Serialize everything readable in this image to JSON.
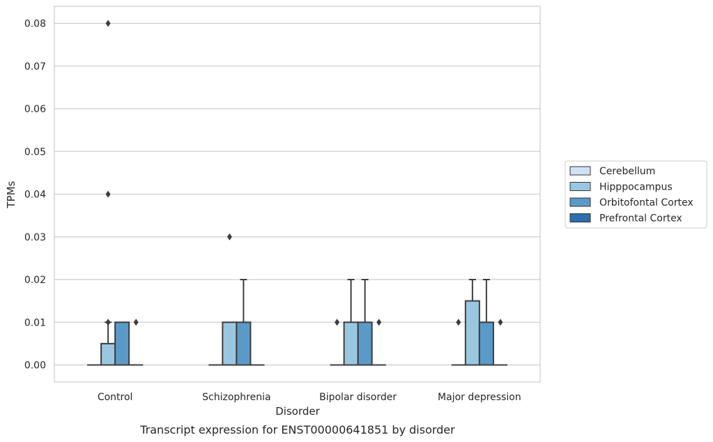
{
  "chart_data": {
    "type": "box",
    "title": "",
    "caption": "Transcript expression for ENST00000641851 by disorder",
    "xlabel": "Disorder",
    "ylabel": "TPMs",
    "ylim": [
      -0.004,
      0.084
    ],
    "yticks": [
      0.0,
      0.01,
      0.02,
      0.03,
      0.04,
      0.05,
      0.06,
      0.07,
      0.08
    ],
    "ytick_labels": [
      "0.00",
      "0.01",
      "0.02",
      "0.03",
      "0.04",
      "0.05",
      "0.06",
      "0.07",
      "0.08"
    ],
    "grid": "horizontal",
    "legend_placement": "outside right",
    "categories": [
      "Control",
      "Schizophrenia",
      "Bipolar disorder",
      "Major depression"
    ],
    "series": [
      {
        "name": "Cerebellum",
        "color": "#d0e1f2",
        "boxes": [
          {
            "min": 0,
            "q1": 0,
            "median": 0,
            "q3": 0,
            "max": 0,
            "outliers": []
          },
          {
            "min": 0,
            "q1": 0,
            "median": 0,
            "q3": 0,
            "max": 0,
            "outliers": []
          },
          {
            "min": 0,
            "q1": 0,
            "median": 0,
            "q3": 0,
            "max": 0,
            "outliers": [
              0.01
            ]
          },
          {
            "min": 0,
            "q1": 0,
            "median": 0,
            "q3": 0,
            "max": 0,
            "outliers": [
              0.01
            ]
          }
        ]
      },
      {
        "name": "Hipppocampus",
        "color": "#9ac7e0",
        "boxes": [
          {
            "min": 0,
            "q1": 0,
            "median": 0,
            "q3": 0.005,
            "max": 0.01,
            "outliers": [
              0.01,
              0.04,
              0.08
            ]
          },
          {
            "min": 0,
            "q1": 0,
            "median": 0,
            "q3": 0.01,
            "max": 0.01,
            "outliers": [
              0.03
            ]
          },
          {
            "min": 0,
            "q1": 0,
            "median": 0,
            "q3": 0.01,
            "max": 0.02,
            "outliers": []
          },
          {
            "min": 0,
            "q1": 0,
            "median": 0,
            "q3": 0.015,
            "max": 0.02,
            "outliers": []
          }
        ]
      },
      {
        "name": "Orbitofontal Cortex",
        "color": "#5a9ac8",
        "boxes": [
          {
            "min": 0,
            "q1": 0,
            "median": 0,
            "q3": 0.01,
            "max": 0.01,
            "outliers": []
          },
          {
            "min": 0,
            "q1": 0,
            "median": 0,
            "q3": 0.01,
            "max": 0.02,
            "outliers": []
          },
          {
            "min": 0,
            "q1": 0,
            "median": 0,
            "q3": 0.01,
            "max": 0.02,
            "outliers": []
          },
          {
            "min": 0,
            "q1": 0,
            "median": 0,
            "q3": 0.01,
            "max": 0.02,
            "outliers": []
          }
        ]
      },
      {
        "name": "Prefrontal Cortex",
        "color": "#2c6eae",
        "boxes": [
          {
            "min": 0,
            "q1": 0,
            "median": 0,
            "q3": 0,
            "max": 0,
            "outliers": [
              0.01
            ]
          },
          {
            "min": 0,
            "q1": 0,
            "median": 0,
            "q3": 0,
            "max": 0,
            "outliers": []
          },
          {
            "min": 0,
            "q1": 0,
            "median": 0,
            "q3": 0,
            "max": 0,
            "outliers": [
              0.01
            ]
          },
          {
            "min": 0,
            "q1": 0,
            "median": 0,
            "q3": 0,
            "max": 0,
            "outliers": [
              0.01
            ]
          }
        ]
      }
    ]
  }
}
